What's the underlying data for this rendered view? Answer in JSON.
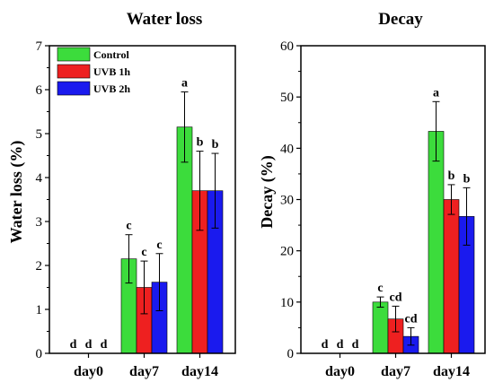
{
  "chart_data": [
    {
      "type": "bar",
      "title": "Water loss",
      "xlabel": "",
      "ylabel": "Water loss (%)",
      "ylim": [
        0,
        7
      ],
      "yticks": [
        0,
        1,
        2,
        3,
        4,
        5,
        6,
        7
      ],
      "categories": [
        "day0",
        "day7",
        "day14"
      ],
      "legend": {
        "placement": "top-left"
      },
      "series": [
        {
          "name": "Control",
          "color": "#3cdc3c",
          "values": [
            0,
            2.15,
            5.15
          ],
          "errors": [
            0,
            0.55,
            0.8
          ],
          "labels": [
            "d",
            "c",
            "a"
          ]
        },
        {
          "name": "UVB 1h",
          "color": "#ee2020",
          "values": [
            0,
            1.5,
            3.7
          ],
          "errors": [
            0,
            0.6,
            0.9
          ],
          "labels": [
            "d",
            "c",
            "b"
          ]
        },
        {
          "name": "UVB 2h",
          "color": "#1a1aee",
          "values": [
            0,
            1.62,
            3.7
          ],
          "errors": [
            0,
            0.65,
            0.85
          ],
          "labels": [
            "d",
            "c",
            "b"
          ]
        }
      ]
    },
    {
      "type": "bar",
      "title": "Decay",
      "xlabel": "",
      "ylabel": "Decay (%)",
      "ylim": [
        0,
        60
      ],
      "yticks": [
        0,
        10,
        20,
        30,
        40,
        50,
        60
      ],
      "categories": [
        "day0",
        "day7",
        "day14"
      ],
      "series": [
        {
          "name": "Control",
          "color": "#3cdc3c",
          "values": [
            0,
            10,
            43.3
          ],
          "errors": [
            0,
            1,
            5.8
          ],
          "labels": [
            "d",
            "c",
            "a"
          ]
        },
        {
          "name": "UVB 1h",
          "color": "#ee2020",
          "values": [
            0,
            6.7,
            30
          ],
          "errors": [
            0,
            2.5,
            2.9
          ],
          "labels": [
            "d",
            "cd",
            "b"
          ]
        },
        {
          "name": "UVB 2h",
          "color": "#1a1aee",
          "values": [
            0,
            3.3,
            26.7
          ],
          "errors": [
            0,
            1.7,
            5.6
          ],
          "labels": [
            "d",
            "cd",
            "b"
          ]
        }
      ]
    }
  ]
}
